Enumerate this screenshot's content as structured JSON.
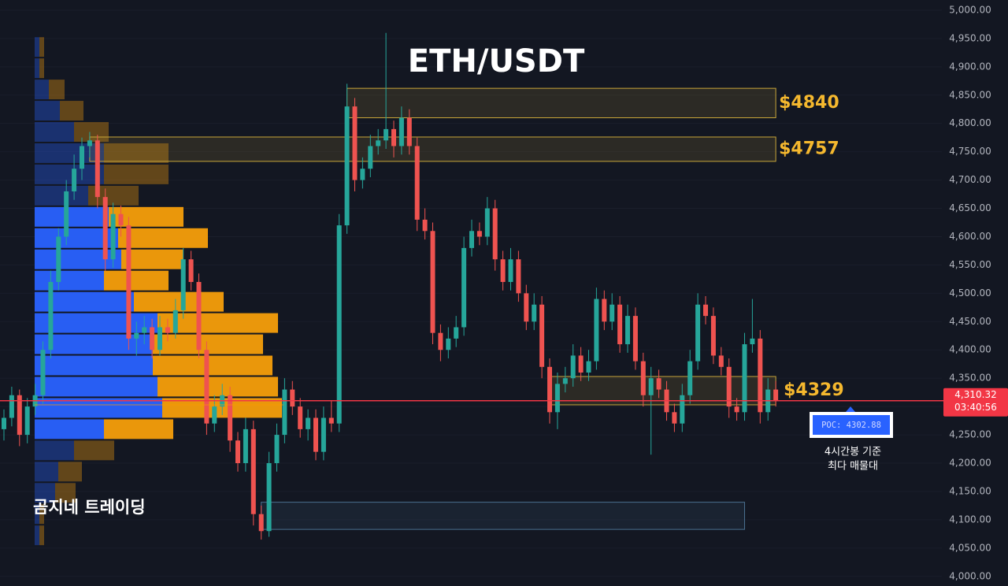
{
  "chart_data": {
    "type": "candlestick",
    "title": "ETH/USDT",
    "watermark": "곰지네 트레이딩",
    "ylim": [
      3983,
      5018
    ],
    "yticks": [
      {
        "value": 4000,
        "label": "4,000.00"
      },
      {
        "value": 4050,
        "label": "4,050.00"
      },
      {
        "value": 4100,
        "label": "4,100.00"
      },
      {
        "value": 4150,
        "label": "4,150.00"
      },
      {
        "value": 4200,
        "label": "4,200.00"
      },
      {
        "value": 4250,
        "label": "4,250.00"
      },
      {
        "value": 4300,
        "label": "4,300.00"
      },
      {
        "value": 4350,
        "label": "4,350.00"
      },
      {
        "value": 4400,
        "label": "4,400.00"
      },
      {
        "value": 4450,
        "label": "4,450.00"
      },
      {
        "value": 4500,
        "label": "4,500.00"
      },
      {
        "value": 4550,
        "label": "4,550.00"
      },
      {
        "value": 4600,
        "label": "4,600.00"
      },
      {
        "value": 4650,
        "label": "4,650.00"
      },
      {
        "value": 4700,
        "label": "4,700.00"
      },
      {
        "value": 4750,
        "label": "4,750.00"
      },
      {
        "value": 4800,
        "label": "4,800.00"
      },
      {
        "value": 4850,
        "label": "4,850.00"
      },
      {
        "value": 4900,
        "label": "4,900.00"
      },
      {
        "value": 4950,
        "label": "4,950.00"
      },
      {
        "value": 5000,
        "label": "5,000.00"
      }
    ],
    "up_color": "#26a69a",
    "down_color": "#ef5350",
    "candles": [
      [
        4260,
        4295,
        4240,
        4280
      ],
      [
        4280,
        4335,
        4265,
        4320
      ],
      [
        4320,
        4330,
        4230,
        4250
      ],
      [
        4250,
        4315,
        4235,
        4300
      ],
      [
        4300,
        4340,
        4285,
        4320
      ],
      [
        4320,
        4415,
        4305,
        4400
      ],
      [
        4400,
        4540,
        4385,
        4520
      ],
      [
        4520,
        4615,
        4505,
        4600
      ],
      [
        4600,
        4700,
        4585,
        4680
      ],
      [
        4680,
        4745,
        4665,
        4720
      ],
      [
        4720,
        4775,
        4700,
        4760
      ],
      [
        4760,
        4785,
        4740,
        4770
      ],
      [
        4770,
        4780,
        4650,
        4670
      ],
      [
        4670,
        4685,
        4540,
        4560
      ],
      [
        4560,
        4660,
        4545,
        4640
      ],
      [
        4640,
        4655,
        4600,
        4620
      ],
      [
        4620,
        4635,
        4400,
        4420
      ],
      [
        4420,
        4450,
        4390,
        4430
      ],
      [
        4430,
        4460,
        4410,
        4440
      ],
      [
        4440,
        4455,
        4385,
        4400
      ],
      [
        4400,
        4460,
        4390,
        4440
      ],
      [
        4440,
        4455,
        4415,
        4430
      ],
      [
        4430,
        4490,
        4420,
        4470
      ],
      [
        4470,
        4580,
        4455,
        4560
      ],
      [
        4560,
        4575,
        4505,
        4520
      ],
      [
        4520,
        4535,
        4385,
        4400
      ],
      [
        4400,
        4415,
        4250,
        4270
      ],
      [
        4270,
        4320,
        4255,
        4300
      ],
      [
        4300,
        4340,
        4285,
        4320
      ],
      [
        4320,
        4335,
        4220,
        4240
      ],
      [
        4240,
        4255,
        4185,
        4200
      ],
      [
        4200,
        4280,
        4185,
        4260
      ],
      [
        4260,
        4275,
        4090,
        4110
      ],
      [
        4110,
        4125,
        4065,
        4080
      ],
      [
        4080,
        4220,
        4070,
        4200
      ],
      [
        4200,
        4270,
        4185,
        4250
      ],
      [
        4250,
        4350,
        4235,
        4330
      ],
      [
        4330,
        4345,
        4285,
        4300
      ],
      [
        4300,
        4315,
        4245,
        4260
      ],
      [
        4260,
        4295,
        4240,
        4280
      ],
      [
        4280,
        4295,
        4205,
        4220
      ],
      [
        4220,
        4300,
        4205,
        4280
      ],
      [
        4280,
        4310,
        4255,
        4270
      ],
      [
        4270,
        4640,
        4255,
        4620
      ],
      [
        4620,
        4870,
        4605,
        4830
      ],
      [
        4830,
        4845,
        4680,
        4700
      ],
      [
        4700,
        4740,
        4685,
        4720
      ],
      [
        4720,
        4780,
        4705,
        4760
      ],
      [
        4760,
        4790,
        4745,
        4770
      ],
      [
        4770,
        4960,
        4755,
        4790
      ],
      [
        4790,
        4805,
        4740,
        4760
      ],
      [
        4760,
        4830,
        4745,
        4810
      ],
      [
        4810,
        4825,
        4745,
        4760
      ],
      [
        4760,
        4775,
        4610,
        4630
      ],
      [
        4630,
        4650,
        4595,
        4610
      ],
      [
        4610,
        4625,
        4410,
        4430
      ],
      [
        4430,
        4445,
        4380,
        4400
      ],
      [
        4400,
        4440,
        4385,
        4420
      ],
      [
        4420,
        4460,
        4405,
        4440
      ],
      [
        4440,
        4600,
        4425,
        4580
      ],
      [
        4580,
        4630,
        4565,
        4610
      ],
      [
        4610,
        4625,
        4585,
        4600
      ],
      [
        4600,
        4670,
        4585,
        4650
      ],
      [
        4650,
        4665,
        4540,
        4560
      ],
      [
        4560,
        4575,
        4505,
        4520
      ],
      [
        4520,
        4580,
        4505,
        4560
      ],
      [
        4560,
        4575,
        4485,
        4500
      ],
      [
        4500,
        4515,
        4435,
        4450
      ],
      [
        4450,
        4500,
        4435,
        4480
      ],
      [
        4480,
        4495,
        4350,
        4370
      ],
      [
        4370,
        4385,
        4270,
        4290
      ],
      [
        4290,
        4360,
        4260,
        4340
      ],
      [
        4340,
        4370,
        4325,
        4350
      ],
      [
        4350,
        4410,
        4335,
        4390
      ],
      [
        4390,
        4405,
        4345,
        4360
      ],
      [
        4360,
        4400,
        4345,
        4380
      ],
      [
        4380,
        4510,
        4365,
        4490
      ],
      [
        4490,
        4505,
        4435,
        4450
      ],
      [
        4450,
        4500,
        4435,
        4480
      ],
      [
        4480,
        4495,
        4395,
        4410
      ],
      [
        4410,
        4480,
        4395,
        4460
      ],
      [
        4460,
        4475,
        4365,
        4380
      ],
      [
        4380,
        4395,
        4300,
        4320
      ],
      [
        4320,
        4370,
        4215,
        4350
      ],
      [
        4350,
        4365,
        4315,
        4330
      ],
      [
        4330,
        4345,
        4275,
        4290
      ],
      [
        4290,
        4305,
        4255,
        4270
      ],
      [
        4270,
        4340,
        4255,
        4320
      ],
      [
        4320,
        4400,
        4305,
        4380
      ],
      [
        4380,
        4500,
        4365,
        4480
      ],
      [
        4480,
        4495,
        4445,
        4460
      ],
      [
        4460,
        4475,
        4375,
        4390
      ],
      [
        4390,
        4405,
        4355,
        4370
      ],
      [
        4370,
        4385,
        4280,
        4300
      ],
      [
        4300,
        4315,
        4275,
        4290
      ],
      [
        4290,
        4430,
        4275,
        4410
      ],
      [
        4410,
        4490,
        4395,
        4420
      ],
      [
        4420,
        4435,
        4270,
        4290
      ],
      [
        4290,
        4350,
        4275,
        4330
      ],
      [
        4330,
        4345,
        4300,
        4310
      ]
    ],
    "zones": [
      {
        "label": "$4840",
        "low": 4810,
        "high": 4862,
        "from": 44,
        "to": 99,
        "color": "#c9a63a"
      },
      {
        "label": "$4757",
        "low": 4733,
        "high": 4776,
        "from": 11,
        "to": 99,
        "color": "#c9a63a"
      },
      {
        "label": "$4329",
        "low": 4303,
        "high": 4353,
        "from": 70,
        "to": 99,
        "color": "#c9a63a"
      },
      {
        "low": 4083,
        "high": 4131,
        "from": 33,
        "to": 95,
        "color": "#4a6f8f"
      }
    ],
    "volume_profile": {
      "prices": [
        4935,
        4897.5,
        4860,
        4822.5,
        4785,
        4747.5,
        4710,
        4672.5,
        4635,
        4597.5,
        4560,
        4522.5,
        4485,
        4447.5,
        4410,
        4372.5,
        4335,
        4297.5,
        4260,
        4222.5,
        4185,
        4147.5,
        4110,
        4072.5
      ],
      "buy": [
        6,
        6,
        18,
        32,
        50,
        88,
        88,
        68,
        94,
        106,
        110,
        88,
        126,
        156,
        150,
        150,
        156,
        162,
        88,
        50,
        30,
        26,
        6,
        6
      ],
      "sell": [
        6,
        6,
        20,
        30,
        44,
        82,
        82,
        64,
        95,
        114,
        79,
        82,
        114,
        153,
        140,
        152,
        153,
        152,
        88,
        51,
        30,
        26,
        6,
        6
      ],
      "value_area": [
        4260,
        4635
      ],
      "buy_color": "#2962ff",
      "sell_color": "#f59e0b"
    },
    "last_price": {
      "value": 4310.32,
      "label": "4,310.32",
      "countdown": "03:40:56",
      "color": "#f23645"
    },
    "poc": {
      "value": 4302.88,
      "label": "POC: 4302.88"
    },
    "note": [
      "4시간봉 기준",
      "최다 매물대"
    ]
  }
}
